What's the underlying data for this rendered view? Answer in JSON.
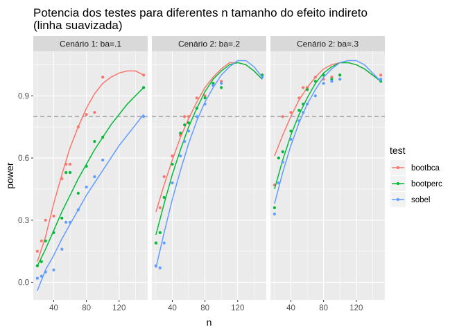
{
  "chart_data": {
    "type": "scatter",
    "title": "Potencia dos testes para diferentes n tamanho do efeito indireto\n (linha suavizada)",
    "xlabel": "n",
    "ylabel": "power",
    "xlim": [
      15,
      155
    ],
    "ylim": [
      -0.085,
      1.115
    ],
    "x_ticks": [
      40,
      80,
      120
    ],
    "y_ticks": [
      0.0,
      0.3,
      0.6,
      0.9
    ],
    "y_tick_labels": [
      "0.0",
      "0.3",
      "0.6",
      "0.9"
    ],
    "reference_line": {
      "y": 0.8,
      "style": "dashed",
      "color": "#a6a6a6"
    },
    "smoothing": "loess",
    "grid": true,
    "panel_background": "#ebebeb",
    "strip_background": "#d9d9d9",
    "legend": {
      "title": "test",
      "position": "right",
      "entries": [
        {
          "label": "bootbca",
          "color": "#F8766D"
        },
        {
          "label": "bootperc",
          "color": "#00BA38"
        },
        {
          "label": "sobel",
          "color": "#619CFF"
        }
      ]
    },
    "x": [
      20,
      25,
      30,
      40,
      50,
      55,
      60,
      70,
      80,
      90,
      100,
      150
    ],
    "panels": [
      {
        "label": "Cenário 1: ba=.1",
        "series": [
          {
            "name": "bootbca",
            "color": "#F8766D",
            "points": [
              0.15,
              0.2,
              0.3,
              0.32,
              0.5,
              0.57,
              0.57,
              0.75,
              0.81,
              0.82,
              0.99,
              1.0
            ],
            "smooth": [
              [
                20,
                0.1
              ],
              [
                30,
                0.22
              ],
              [
                40,
                0.38
              ],
              [
                50,
                0.52
              ],
              [
                60,
                0.65
              ],
              [
                70,
                0.75
              ],
              [
                80,
                0.84
              ],
              [
                90,
                0.91
              ],
              [
                100,
                0.96
              ],
              [
                110,
                0.99
              ],
              [
                120,
                1.01
              ],
              [
                130,
                1.02
              ],
              [
                140,
                1.02
              ],
              [
                150,
                1.0
              ]
            ]
          },
          {
            "name": "bootperc",
            "color": "#00BA38",
            "points": [
              0.08,
              0.1,
              0.2,
              0.24,
              0.31,
              0.53,
              0.53,
              0.43,
              0.56,
              0.68,
              0.7,
              0.94
            ],
            "smooth": [
              [
                20,
                0.08
              ],
              [
                30,
                0.16
              ],
              [
                40,
                0.25
              ],
              [
                50,
                0.34
              ],
              [
                60,
                0.42
              ],
              [
                70,
                0.5
              ],
              [
                80,
                0.57
              ],
              [
                90,
                0.64
              ],
              [
                100,
                0.7
              ],
              [
                110,
                0.76
              ],
              [
                120,
                0.81
              ],
              [
                130,
                0.86
              ],
              [
                140,
                0.9
              ],
              [
                150,
                0.94
              ]
            ]
          },
          {
            "name": "sobel",
            "color": "#619CFF",
            "points": [
              0.02,
              0.03,
              0.05,
              0.06,
              0.16,
              0.29,
              0.29,
              0.35,
              0.46,
              0.51,
              0.59,
              0.8
            ],
            "smooth": [
              [
                20,
                -0.04
              ],
              [
                30,
                0.06
              ],
              [
                40,
                0.13
              ],
              [
                50,
                0.21
              ],
              [
                60,
                0.28
              ],
              [
                70,
                0.35
              ],
              [
                80,
                0.42
              ],
              [
                90,
                0.48
              ],
              [
                100,
                0.54
              ],
              [
                110,
                0.6
              ],
              [
                120,
                0.66
              ],
              [
                130,
                0.71
              ],
              [
                140,
                0.76
              ],
              [
                150,
                0.81
              ]
            ]
          }
        ]
      },
      {
        "label": "Cenário 2: ba=.2",
        "series": [
          {
            "name": "bootbca",
            "color": "#F8766D",
            "points": [
              0.19,
              0.36,
              0.51,
              0.61,
              0.71,
              0.8,
              0.8,
              0.89,
              0.9,
              0.96,
              0.97,
              1.0
            ],
            "smooth": [
              [
                20,
                0.34
              ],
              [
                30,
                0.47
              ],
              [
                40,
                0.59
              ],
              [
                50,
                0.7
              ],
              [
                60,
                0.79
              ],
              [
                70,
                0.87
              ],
              [
                80,
                0.94
              ],
              [
                90,
                0.99
              ],
              [
                100,
                1.03
              ],
              [
                110,
                1.06
              ],
              [
                120,
                1.06
              ],
              [
                130,
                1.05
              ],
              [
                140,
                1.02
              ],
              [
                150,
                0.98
              ]
            ]
          },
          {
            "name": "bootperc",
            "color": "#00BA38",
            "points": [
              0.19,
              0.24,
              0.41,
              0.57,
              0.72,
              0.76,
              0.77,
              0.84,
              0.89,
              0.96,
              0.94,
              1.0
            ],
            "smooth": [
              [
                20,
                0.23
              ],
              [
                30,
                0.38
              ],
              [
                40,
                0.52
              ],
              [
                50,
                0.64
              ],
              [
                60,
                0.75
              ],
              [
                70,
                0.84
              ],
              [
                80,
                0.92
              ],
              [
                90,
                0.98
              ],
              [
                100,
                1.02
              ],
              [
                110,
                1.05
              ],
              [
                120,
                1.06
              ],
              [
                130,
                1.05
              ],
              [
                140,
                1.02
              ],
              [
                150,
                0.98
              ]
            ]
          },
          {
            "name": "sobel",
            "color": "#619CFF",
            "points": [
              0.08,
              0.07,
              0.19,
              0.48,
              0.61,
              0.68,
              0.73,
              0.8,
              0.86,
              0.95,
              0.96,
              0.99
            ],
            "smooth": [
              [
                20,
                0.07
              ],
              [
                30,
                0.24
              ],
              [
                40,
                0.4
              ],
              [
                50,
                0.54
              ],
              [
                60,
                0.67
              ],
              [
                70,
                0.78
              ],
              [
                80,
                0.87
              ],
              [
                90,
                0.94
              ],
              [
                100,
                1.0
              ],
              [
                110,
                1.04
              ],
              [
                120,
                1.07
              ],
              [
                130,
                1.07
              ],
              [
                140,
                1.04
              ],
              [
                150,
                0.99
              ]
            ]
          }
        ]
      },
      {
        "label": "Cenário 2: ba=.3",
        "series": [
          {
            "name": "bootbca",
            "color": "#F8766D",
            "points": [
              0.47,
              0.6,
              0.8,
              0.82,
              0.89,
              0.94,
              0.94,
              0.99,
              0.98,
              0.99,
              1.0,
              1.0
            ],
            "smooth": [
              [
                20,
                0.61
              ],
              [
                30,
                0.71
              ],
              [
                40,
                0.8
              ],
              [
                50,
                0.88
              ],
              [
                60,
                0.94
              ],
              [
                70,
                0.99
              ],
              [
                80,
                1.03
              ],
              [
                90,
                1.05
              ],
              [
                100,
                1.06
              ],
              [
                110,
                1.06
              ],
              [
                120,
                1.05
              ],
              [
                130,
                1.03
              ],
              [
                140,
                1.0
              ],
              [
                150,
                0.97
              ]
            ]
          },
          {
            "name": "bootperc",
            "color": "#00BA38",
            "points": [
              0.36,
              0.6,
              0.63,
              0.73,
              0.83,
              0.86,
              0.93,
              0.97,
              1.0,
              0.98,
              1.0,
              0.97
            ],
            "smooth": [
              [
                20,
                0.45
              ],
              [
                30,
                0.59
              ],
              [
                40,
                0.71
              ],
              [
                50,
                0.81
              ],
              [
                60,
                0.89
              ],
              [
                70,
                0.96
              ],
              [
                80,
                1.01
              ],
              [
                90,
                1.04
              ],
              [
                100,
                1.06
              ],
              [
                110,
                1.06
              ],
              [
                120,
                1.05
              ],
              [
                130,
                1.03
              ],
              [
                140,
                1.0
              ],
              [
                150,
                0.97
              ]
            ]
          },
          {
            "name": "sobel",
            "color": "#619CFF",
            "points": [
              0.33,
              0.48,
              0.58,
              0.69,
              0.78,
              0.82,
              0.86,
              0.9,
              0.96,
              0.97,
              0.98,
              0.98
            ],
            "smooth": [
              [
                20,
                0.38
              ],
              [
                30,
                0.53
              ],
              [
                40,
                0.66
              ],
              [
                50,
                0.77
              ],
              [
                60,
                0.86
              ],
              [
                70,
                0.93
              ],
              [
                80,
                0.99
              ],
              [
                90,
                1.03
              ],
              [
                100,
                1.06
              ],
              [
                110,
                1.07
              ],
              [
                120,
                1.07
              ],
              [
                130,
                1.05
              ],
              [
                140,
                1.01
              ],
              [
                150,
                0.97
              ]
            ]
          }
        ]
      }
    ]
  }
}
